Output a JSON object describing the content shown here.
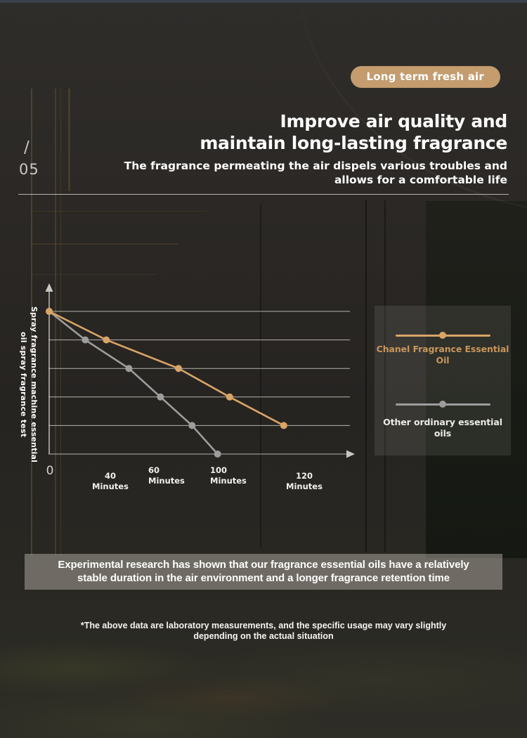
{
  "header": {
    "badge": "Long term fresh air",
    "title_line1": "Improve air quality and",
    "title_line2": "maintain long-lasting fragrance",
    "subtitle_line1": "The fragrance permeating the air dispels various troubles and",
    "subtitle_line2": "allows for a comfortable life",
    "page_index_slash": "/",
    "page_index": "05"
  },
  "chart_data": {
    "type": "line",
    "title": "Spray fragrance machine essential oil spray fragrance test",
    "x_tick_labels": [
      "0",
      "40 Minutes",
      "60 Minutes",
      "100 Minutes",
      "120 Minutes"
    ],
    "y_axis": {
      "label": "",
      "gridlines": true,
      "levels": 6,
      "range": [
        0,
        5
      ]
    },
    "legend_position": "right",
    "series": [
      {
        "name": "Chanel Fragrance Essential Oil",
        "color": "#d9a466",
        "points": [
          [
            0,
            5
          ],
          [
            0.19,
            4
          ],
          [
            0.43,
            3
          ],
          [
            0.6,
            2
          ],
          [
            0.78,
            1
          ]
        ],
        "x_unit": "fraction of x-axis length",
        "y_unit": "gridline level (5 = start intensity, 0 = none)"
      },
      {
        "name": "Other ordinary essential oils",
        "color": "#9d9d9d",
        "points": [
          [
            0,
            5
          ],
          [
            0.12,
            4
          ],
          [
            0.265,
            3
          ],
          [
            0.37,
            2
          ],
          [
            0.475,
            1
          ],
          [
            0.56,
            0
          ]
        ],
        "x_unit": "fraction of x-axis length",
        "y_unit": "gridline level (5 = start intensity, 0 = none)"
      }
    ],
    "legend": [
      {
        "label": "Chanel Fragrance Essential Oil",
        "line_color": "#d9a466",
        "text_color": "#c8965c"
      },
      {
        "label": "Other ordinary essential oils",
        "line_color": "#9d9d9d",
        "text_color": "#ecebe8"
      }
    ]
  },
  "banner": {
    "line1": "Experimental research has shown that our fragrance essential oils have a relatively",
    "line2": "stable duration in the air environment and a longer fragrance retention time"
  },
  "footnote": {
    "line1": "*The above data are laboratory measurements, and the specific usage may vary slightly",
    "line2": "depending on the actual situation"
  },
  "colors": {
    "accent_tan": "#c49c6e",
    "chart_orange": "#d9a466",
    "chart_gray": "#9d9d9d",
    "legend_orange_text": "#c8965c",
    "background": "#2b2926",
    "gridline": "#d8d6d1"
  }
}
